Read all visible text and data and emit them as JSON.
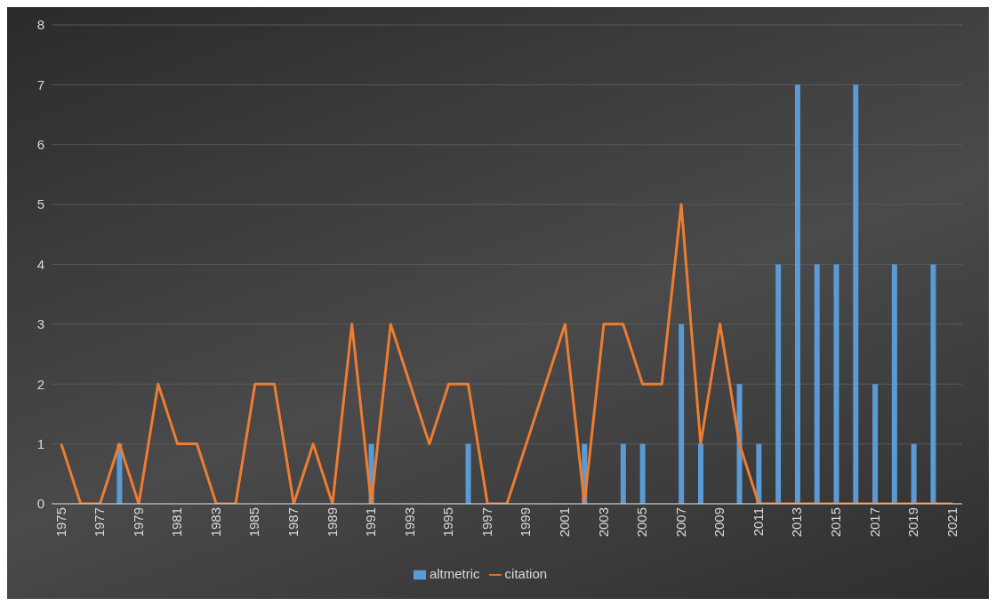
{
  "chart_data": {
    "type": "bar",
    "categories": [
      "1975",
      null,
      "1977",
      null,
      "1979",
      null,
      "1981",
      null,
      "1983",
      null,
      "1985",
      null,
      "1987",
      null,
      "1989",
      null,
      "1991",
      null,
      "1993",
      null,
      "1995",
      null,
      "1997",
      null,
      "1999",
      null,
      "2001",
      null,
      "2003",
      null,
      "2005",
      null,
      "2007",
      null,
      "2009",
      null,
      "2011",
      null,
      "2013",
      null,
      "2015",
      null,
      "2017",
      null,
      "2019",
      null,
      "2021"
    ],
    "series": [
      {
        "name": "altmetric",
        "color": "#5b9bd5",
        "values": [
          0,
          0,
          0,
          1,
          0,
          0,
          0,
          0,
          0,
          0,
          0,
          0,
          0,
          0,
          0,
          0,
          1,
          0,
          0,
          0,
          0,
          1,
          0,
          0,
          0,
          0,
          0,
          1,
          0,
          1,
          1,
          0,
          3,
          1,
          0,
          2,
          1,
          4,
          7,
          4,
          4,
          7,
          2,
          4,
          1,
          4,
          0
        ]
      },
      {
        "name": "citation",
        "type": "line",
        "color": "#ed7d31",
        "values": [
          1,
          0,
          0,
          1,
          0,
          2,
          1,
          1,
          0,
          0,
          2,
          2,
          0,
          1,
          0,
          3,
          0,
          3,
          2,
          1,
          2,
          2,
          0,
          0,
          1,
          2,
          3,
          0,
          3,
          3,
          2,
          2,
          5,
          1,
          3,
          1,
          0,
          0,
          0,
          0,
          0,
          0,
          0,
          0,
          0,
          0,
          0
        ]
      }
    ],
    "ylim": [
      0,
      8
    ],
    "yticks": [
      0,
      1,
      2,
      3,
      4,
      5,
      6,
      7,
      8
    ],
    "grid": "y",
    "legend": "bottom",
    "marker": "none",
    "line_style": "solid"
  }
}
